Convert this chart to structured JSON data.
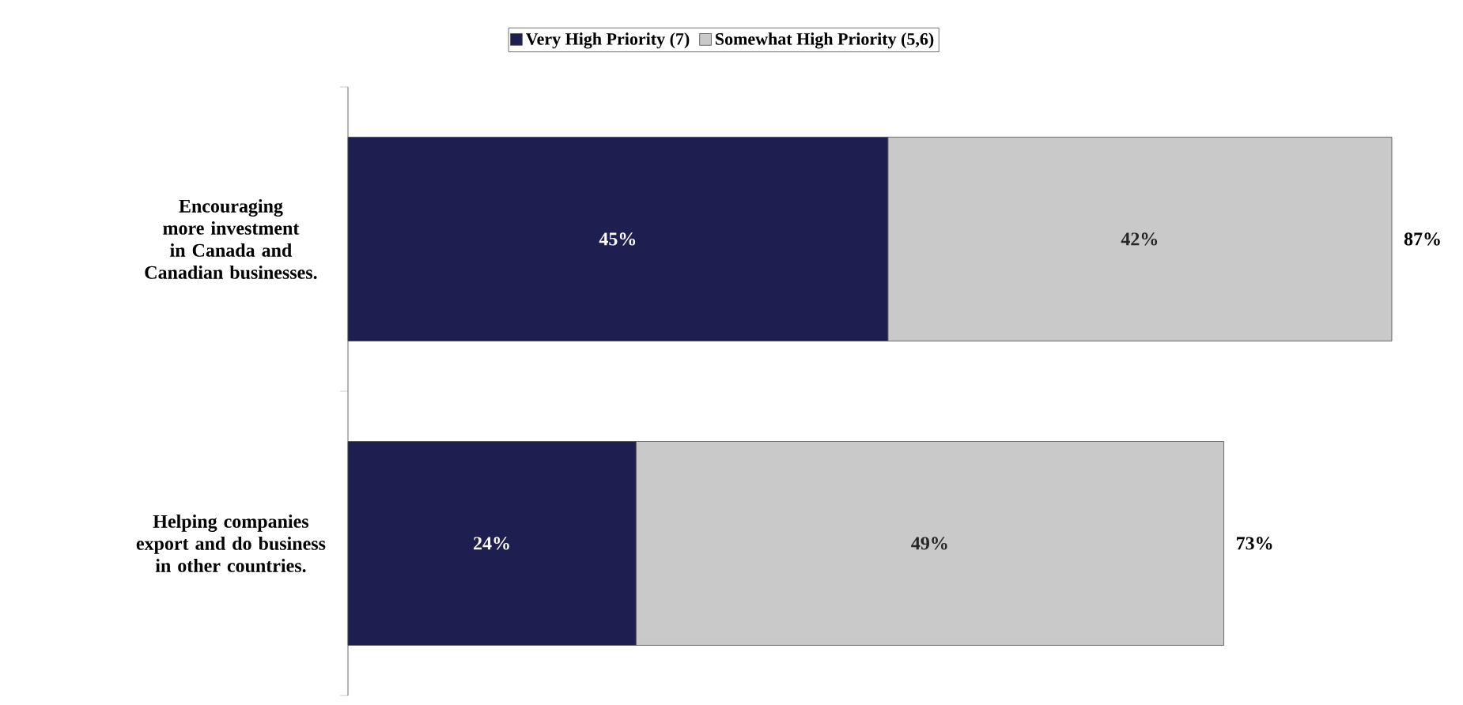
{
  "chart_data": {
    "type": "bar",
    "orientation": "horizontal",
    "stacked": true,
    "categories": [
      "Encouraging more investment in Canada and Canadian businesses.",
      "Helping companies export and do business in other countries."
    ],
    "series": [
      {
        "name": "Very High Priority (7)",
        "color": "#1c1f4f",
        "values": [
          45,
          24
        ],
        "value_labels": [
          "45%",
          "24%"
        ]
      },
      {
        "name": "Somewhat High Priority (5,6)",
        "color": "#c9c9c9",
        "values": [
          42,
          49
        ],
        "value_labels": [
          "42%",
          "49%"
        ]
      }
    ],
    "totals": [
      "87%",
      "73%"
    ],
    "legend": "top"
  }
}
